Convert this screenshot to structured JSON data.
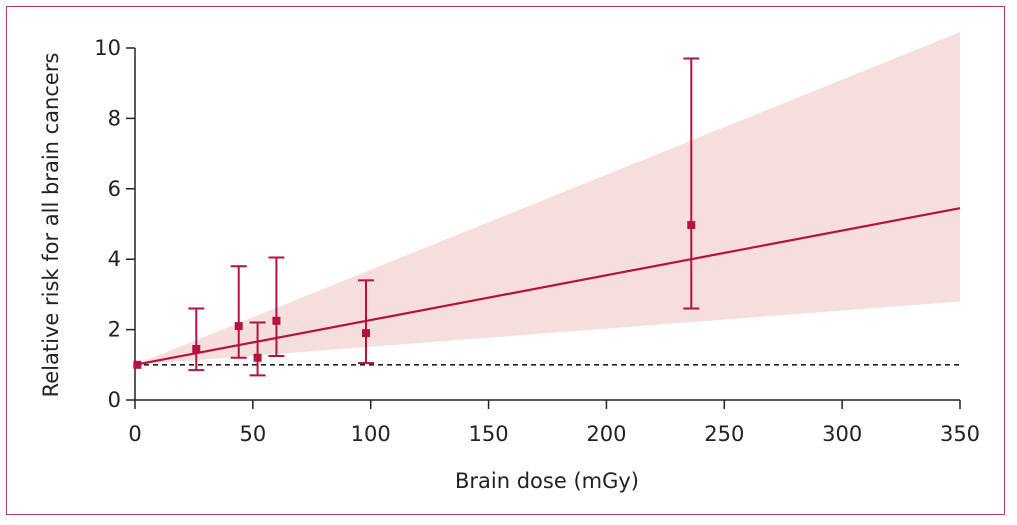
{
  "chart_data": {
    "type": "scatter",
    "xlabel": "Brain dose (mGy)",
    "ylabel": "Relative risk for all brain cancers",
    "xlim": [
      0,
      350
    ],
    "ylim": [
      0,
      10
    ],
    "xticks": [
      0,
      50,
      100,
      150,
      200,
      250,
      300,
      350
    ],
    "yticks": [
      0,
      2,
      4,
      6,
      8,
      10
    ],
    "points": [
      {
        "x": 1,
        "y": 1.0,
        "lo": 1.0,
        "hi": 1.0
      },
      {
        "x": 26,
        "y": 1.45,
        "lo": 0.85,
        "hi": 2.6
      },
      {
        "x": 44,
        "y": 2.1,
        "lo": 1.2,
        "hi": 3.8
      },
      {
        "x": 52,
        "y": 1.2,
        "lo": 0.7,
        "hi": 2.2
      },
      {
        "x": 60,
        "y": 2.25,
        "lo": 1.25,
        "hi": 4.05
      },
      {
        "x": 98,
        "y": 1.9,
        "lo": 1.05,
        "hi": 3.4
      },
      {
        "x": 236,
        "y": 4.97,
        "lo": 2.6,
        "hi": 9.7
      }
    ],
    "fit_line": {
      "x": [
        0,
        350
      ],
      "y": [
        1.0,
        5.45
      ]
    },
    "confidence_band": {
      "x": [
        0,
        350
      ],
      "lower": [
        1.0,
        2.8
      ],
      "upper": [
        1.0,
        10.45
      ]
    },
    "reference_line": {
      "y": 1.0,
      "style": "dashed"
    },
    "colors": {
      "series": "#b5123f",
      "band": "#f5dedb",
      "frame": "#b23a5c",
      "axis": "#222222",
      "reference": "#222222"
    },
    "grid": false
  }
}
